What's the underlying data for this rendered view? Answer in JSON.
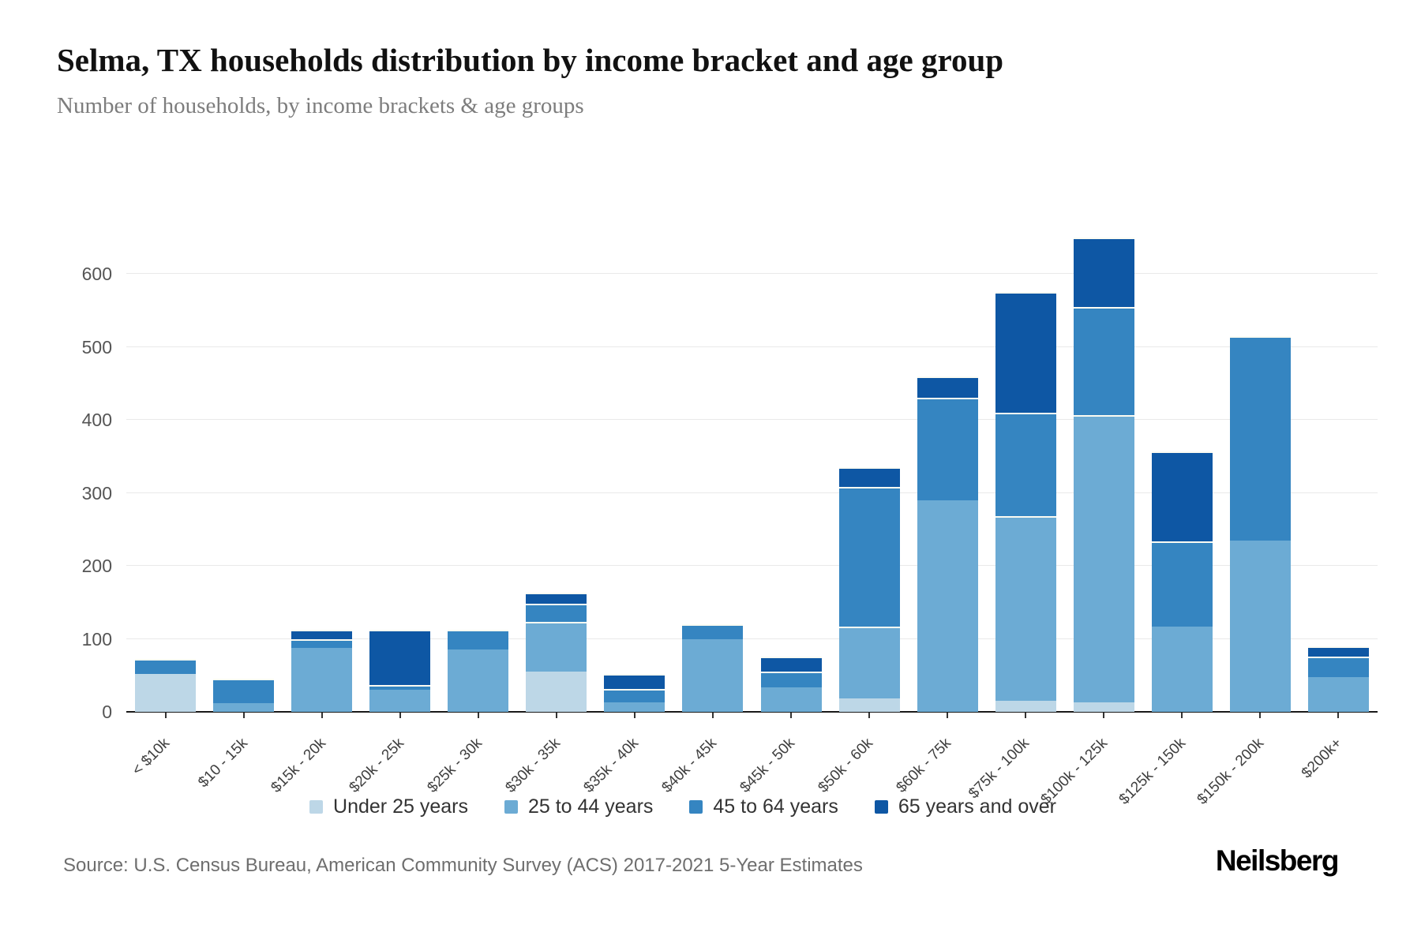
{
  "header": {
    "title": "Selma, TX households distribution by income bracket and age group",
    "subtitle": "Number of households, by income brackets & age groups"
  },
  "footer": {
    "source": "Source: U.S. Census Bureau, American Community Survey (ACS) 2017-2021 5-Year Estimates",
    "brand": "Neilsberg"
  },
  "colors": {
    "under_25": "#bdd7e7",
    "age_25_44": "#6cabd4",
    "age_45_64": "#3585c1",
    "age_65_over": "#0e57a4",
    "gridline": "#e9e9e9",
    "axis": "#1a1a1a"
  },
  "chart_data": {
    "type": "bar",
    "stacked": true,
    "title": "Selma, TX households distribution by income bracket and age group",
    "xlabel": "",
    "ylabel": "Number of households",
    "ylim": [
      0,
      650
    ],
    "yticks": [
      0,
      100,
      200,
      300,
      400,
      500,
      600
    ],
    "grid": "horizontal",
    "legend_position": "bottom",
    "categories": [
      "< $10k",
      "$10 - 15k",
      "$15k - 20k",
      "$20k - 25k",
      "$25k - 30k",
      "$30k - 35k",
      "$35k - 40k",
      "$40k - 45k",
      "$45k - 50k",
      "$50k - 60k",
      "$60k - 75k",
      "$75k - 100k",
      "$100k - 125k",
      "$125k - 150k",
      "$150k - 200k",
      "$200k+"
    ],
    "series": [
      {
        "name": "Under 25 years",
        "color": "#bdd7e7",
        "values": [
          52,
          0,
          0,
          0,
          0,
          55,
          0,
          0,
          0,
          18,
          0,
          15,
          13,
          0,
          0,
          0
        ]
      },
      {
        "name": "25 to 44 years",
        "color": "#6cabd4",
        "values": [
          0,
          12,
          88,
          30,
          85,
          68,
          13,
          100,
          34,
          99,
          290,
          253,
          394,
          117,
          235,
          48
        ]
      },
      {
        "name": "45 to 64 years",
        "color": "#3585c1",
        "values": [
          20,
          33,
          12,
          7,
          27,
          25,
          18,
          20,
          21,
          191,
          140,
          142,
          148,
          116,
          280,
          28
        ]
      },
      {
        "name": "65 years and over",
        "color": "#0e57a4",
        "values": [
          0,
          0,
          12,
          75,
          0,
          15,
          21,
          0,
          21,
          27,
          30,
          165,
          95,
          124,
          0,
          14
        ]
      }
    ],
    "totals": [
      72,
      45,
      112,
      112,
      112,
      163,
      52,
      120,
      76,
      335,
      460,
      575,
      650,
      357,
      515,
      90
    ]
  }
}
